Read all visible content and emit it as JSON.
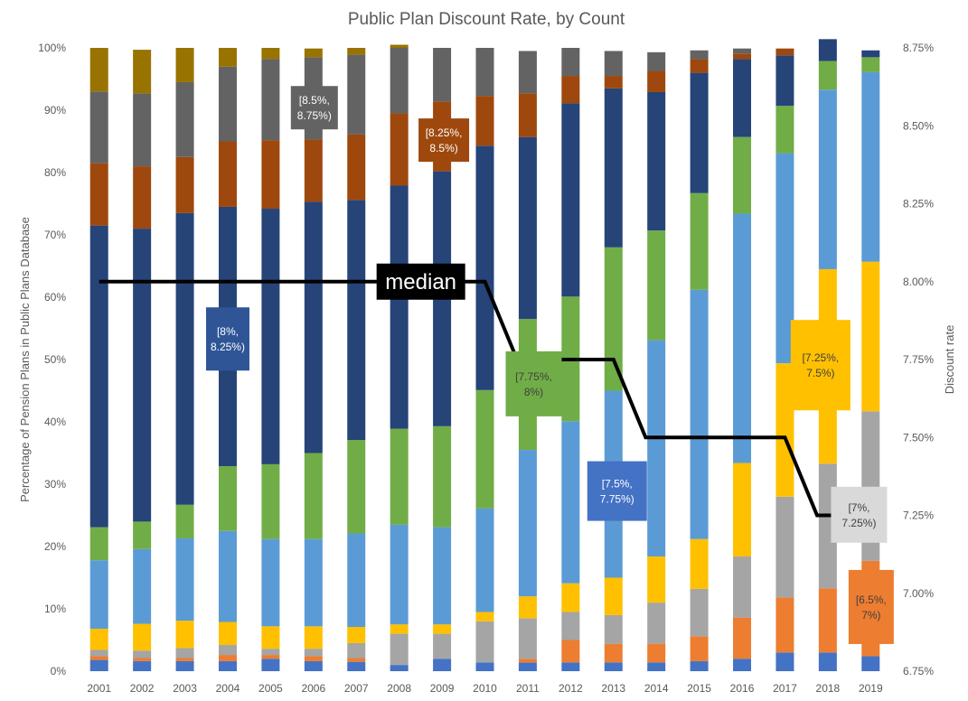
{
  "chart_data": {
    "type": "bar",
    "stacked": true,
    "title": "Public Plan Discount Rate, by Count",
    "ylabel": "Percentage of Pension Plans in Public Plans Database",
    "y2label": "Discount rate",
    "ylim": [
      0,
      100
    ],
    "y2lim": [
      6.75,
      8.75
    ],
    "yticks": [
      "0%",
      "10%",
      "20%",
      "30%",
      "40%",
      "50%",
      "60%",
      "70%",
      "80%",
      "90%",
      "100%"
    ],
    "y2ticks": [
      "6.75%",
      "7.00%",
      "7.25%",
      "7.50%",
      "7.75%",
      "8.00%",
      "8.25%",
      "8.50%",
      "8.75%"
    ],
    "y2tick_values": [
      6.75,
      7.0,
      7.25,
      7.5,
      7.75,
      8.0,
      8.25,
      8.5,
      8.75
    ],
    "grid": false,
    "legend": "none",
    "categories": [
      "2001",
      "2002",
      "2003",
      "2004",
      "2005",
      "2006",
      "2007",
      "2008",
      "2009",
      "2010",
      "2011",
      "2012",
      "2013",
      "2014",
      "2015",
      "2016",
      "2017",
      "2018",
      "2019"
    ],
    "series": [
      {
        "color": "#4472c4",
        "values": [
          1.8,
          1.6,
          1.6,
          1.6,
          2.0,
          1.6,
          1.5,
          1.0,
          2.0,
          1.4,
          1.4,
          1.4,
          1.4,
          1.4,
          1.6,
          2.0,
          3.0,
          3.0,
          2.4
        ]
      },
      {
        "color": "#ed7d31",
        "values": [
          0.6,
          0.5,
          0.5,
          1.0,
          0.6,
          0.8,
          0.6,
          0,
          0,
          0,
          0.6,
          3.6,
          3.0,
          3.0,
          4.0,
          6.6,
          8.8,
          10.3,
          15.3
        ]
      },
      {
        "color": "#a5a5a5",
        "values": [
          1.0,
          1.2,
          1.6,
          1.6,
          1.0,
          1.2,
          2.4,
          5.0,
          4.0,
          6.6,
          6.5,
          4.5,
          4.6,
          6.6,
          7.6,
          9.8,
          16.2,
          20.0,
          24.0
        ]
      },
      {
        "color": "#ffc000",
        "values": [
          3.4,
          4.3,
          4.4,
          3.7,
          3.6,
          3.6,
          2.6,
          1.5,
          1.5,
          1.5,
          3.5,
          4.6,
          6.0,
          7.4,
          8.0,
          15.0,
          21.4,
          31.2,
          24.0
        ]
      },
      {
        "color": "#5b9bd5",
        "values": [
          11.0,
          12.0,
          13.2,
          14.6,
          14.0,
          14.0,
          15.0,
          16.0,
          15.6,
          16.6,
          23.5,
          26.0,
          30.0,
          34.7,
          40.0,
          40.0,
          33.7,
          28.8,
          30.4
        ]
      },
      {
        "color": "#70ad47",
        "values": [
          5.3,
          4.4,
          5.4,
          10.4,
          12.0,
          13.8,
          15.0,
          15.4,
          16.2,
          19.0,
          21.0,
          20.0,
          23.0,
          17.6,
          15.5,
          12.3,
          7.6,
          4.6,
          2.4
        ]
      },
      {
        "color": "#264478",
        "values": [
          48.4,
          47.0,
          46.8,
          41.6,
          41.0,
          40.3,
          38.5,
          39.0,
          40.9,
          39.2,
          29.2,
          31.0,
          25.5,
          22.2,
          19.3,
          12.5,
          8.1,
          3.5,
          1.1
        ]
      },
      {
        "color": "#9e480e",
        "values": [
          10.0,
          10.0,
          9.0,
          10.5,
          11.0,
          10.0,
          10.5,
          11.6,
          11.2,
          8.0,
          7.0,
          4.4,
          2.0,
          3.4,
          2.2,
          0.9,
          1.1,
          0,
          0
        ]
      },
      {
        "color": "#636363",
        "values": [
          11.5,
          11.7,
          12.0,
          12.0,
          13.0,
          13.2,
          12.8,
          10.5,
          8.6,
          7.7,
          6.8,
          4.5,
          4.0,
          3.0,
          1.4,
          0.8,
          0,
          0,
          0
        ]
      },
      {
        "color": "#997300",
        "values": [
          7.0,
          7.0,
          5.5,
          3.0,
          1.8,
          1.4,
          1.1,
          0.5,
          0,
          0,
          0,
          0,
          0,
          0,
          0,
          0,
          0,
          0,
          0
        ]
      }
    ],
    "median_discount_rate": [
      8.0,
      8.0,
      8.0,
      8.0,
      8.0,
      8.0,
      8.0,
      8.0,
      8.0,
      8.0,
      7.75,
      7.75,
      7.75,
      7.5,
      7.5,
      7.5,
      7.5,
      7.25,
      7.25
    ],
    "median_label": "median",
    "annotations": [
      {
        "lines": [
          "[8.5%,",
          "8.75%)"
        ],
        "series_color": "#636363",
        "text_color": "#ffffff"
      },
      {
        "lines": [
          "[8.25%,",
          "8.5%)"
        ],
        "series_color": "#9e480e",
        "text_color": "#ffffff"
      },
      {
        "lines": [
          "[8%,",
          "8.25%)"
        ],
        "series_color": "#2f5597",
        "text_color": "#ffffff"
      },
      {
        "lines": [
          "[7.75%,",
          "8%)"
        ],
        "series_color": "#70ad47",
        "text_color": "#404040"
      },
      {
        "lines": [
          "[7.5%,",
          "7.75%)"
        ],
        "series_color": "#4472c4",
        "text_color": "#ffffff"
      },
      {
        "lines": [
          "[7.25%,",
          "7.5%)"
        ],
        "series_color": "#ffc000",
        "text_color": "#404040"
      },
      {
        "lines": [
          "[7%,",
          "7.25%)"
        ],
        "series_color": "#d9d9d9",
        "text_color": "#404040"
      },
      {
        "lines": [
          "[6.5%,",
          "7%)"
        ],
        "series_color": "#ed7d31",
        "text_color": "#404040"
      }
    ]
  }
}
